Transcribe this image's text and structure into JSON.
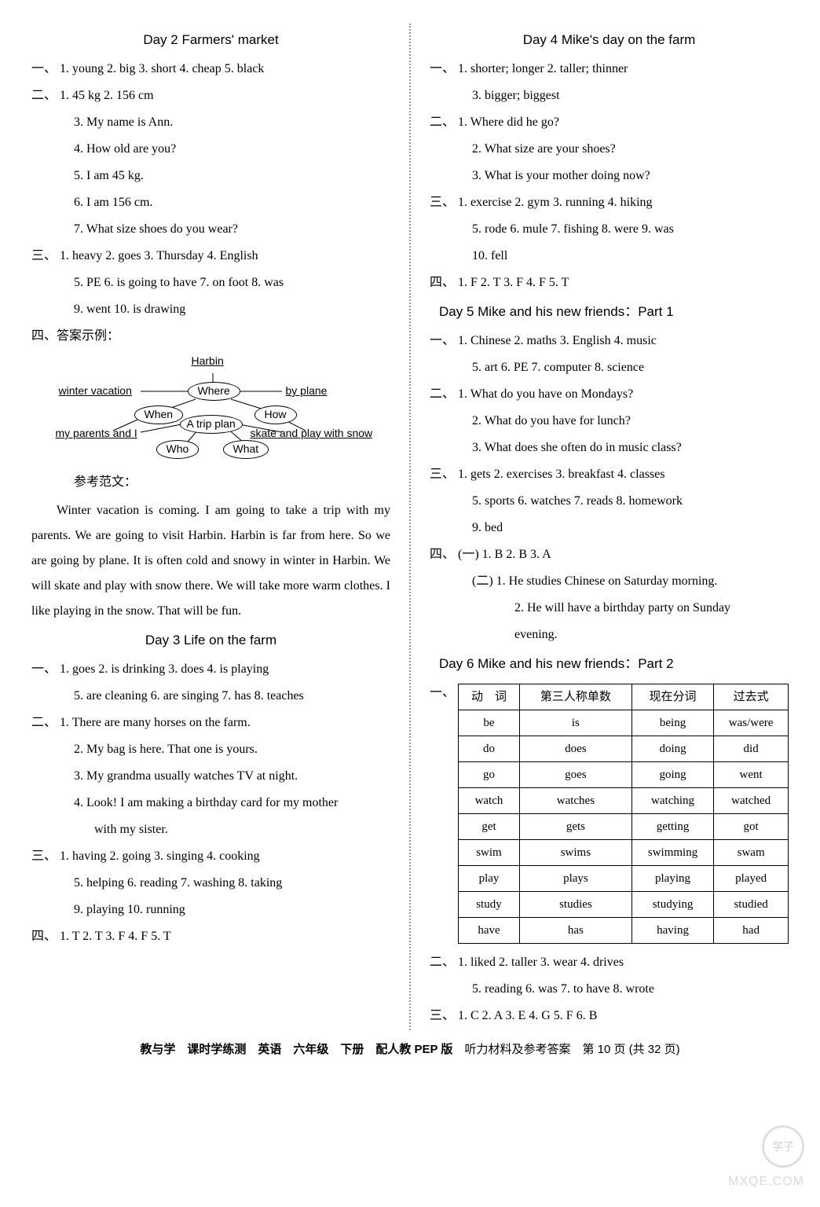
{
  "left": {
    "day2": {
      "title": "Day 2   Farmers' market",
      "s1": {
        "label": "一、",
        "line1": "1. young   2. big   3. short   4. cheap   5. black"
      },
      "s2": {
        "label": "二、",
        "line1": "1. 45 kg   2. 156 cm",
        "line2": "3. My name is Ann.",
        "line3": "4. How old are you?",
        "line4": "5. I am 45 kg.",
        "line5": "6. I am 156 cm.",
        "line6": "7. What size shoes do you wear?"
      },
      "s3": {
        "label": "三、",
        "line1": "1. heavy   2. goes   3. Thursday   4. English",
        "line2": "5. PE   6. is going to have   7. on foot   8. was",
        "line3": "9. went   10. is drawing"
      },
      "s4": {
        "label": "四、答案示例：",
        "diagram": {
          "harbin": "Harbin",
          "winter_vacation": "winter vacation",
          "by_plane": "by plane",
          "my_parents": "my parents and I",
          "skate": "skate and play with snow",
          "where": "Where",
          "when": "When",
          "how": "How",
          "who": "Who",
          "what": "What",
          "center": "A trip plan"
        },
        "fanwen_label": "参考范文：",
        "essay": "Winter vacation is coming. I am going to take a trip with my parents. We are going to visit Harbin. Harbin is far from here. So we are going by plane. It is often cold and snowy in winter in Harbin. We will skate and play with snow there. We will take more warm clothes. I like playing in the snow. That will be fun."
      }
    },
    "day3": {
      "title": "Day 3   Life on the farm",
      "s1": {
        "label": "一、",
        "line1": "1. goes   2. is drinking   3. does   4. is playing",
        "line2": "5. are cleaning   6. are singing   7. has   8. teaches"
      },
      "s2": {
        "label": "二、",
        "line1": "1. There are many horses on the farm.",
        "line2": "2. My bag is here. That one is yours.",
        "line3": "3. My grandma usually watches TV at night.",
        "line4": "4. Look! I am making a birthday card for my mother",
        "line5": "with my sister."
      },
      "s3": {
        "label": "三、",
        "line1": "1. having   2. going   3. singing   4. cooking",
        "line2": "5. helping   6. reading   7. washing   8. taking",
        "line3": "9. playing   10. running"
      },
      "s4": {
        "label": "四、",
        "line1": "1. T   2. T   3. F   4. F   5. T"
      }
    }
  },
  "right": {
    "day4": {
      "title": "Day 4   Mike's day on the farm",
      "s1": {
        "label": "一、",
        "line1": "1. shorter; longer   2. taller; thinner",
        "line2": "3. bigger; biggest"
      },
      "s2": {
        "label": "二、",
        "line1": "1. Where did he go?",
        "line2": "2. What size are your shoes?",
        "line3": "3. What is your mother doing now?"
      },
      "s3": {
        "label": "三、",
        "line1": "1. exercise   2. gym   3. running   4. hiking",
        "line2": "5. rode   6. mule   7. fishing   8. were   9. was",
        "line3": "10. fell"
      },
      "s4": {
        "label": "四、",
        "line1": "1. F   2. T   3. F   4. F   5. T"
      }
    },
    "day5": {
      "title": "Day 5   Mike and his new friends：Part 1",
      "s1": {
        "label": "一、",
        "line1": "1. Chinese   2. maths   3. English   4. music",
        "line2": "5. art   6. PE   7. computer   8. science"
      },
      "s2": {
        "label": "二、",
        "line1": "1. What do you have on Mondays?",
        "line2": "2. What do you have for lunch?",
        "line3": "3. What does she often do in music class?"
      },
      "s3": {
        "label": "三、",
        "line1": "1. gets   2. exercises   3. breakfast   4. classes",
        "line2": "5. sports   6. watches   7. reads   8. homework",
        "line3": "9. bed"
      },
      "s4": {
        "label": "四、",
        "part1_label": "(一) ",
        "part1": "1. B   2. B   3. A",
        "part2_label": "(二) ",
        "part2_1": "1. He studies Chinese on Saturday morning.",
        "part2_2": "2. He will have a birthday party on Sunday",
        "part2_3": "evening."
      }
    },
    "day6": {
      "title": "Day 6   Mike and his new friends：Part 2",
      "s1_label": "一、",
      "table": {
        "headers": [
          "动　词",
          "第三人称单数",
          "现在分词",
          "过去式"
        ],
        "rows": [
          [
            "be",
            "is",
            "being",
            "was/were"
          ],
          [
            "do",
            "does",
            "doing",
            "did"
          ],
          [
            "go",
            "goes",
            "going",
            "went"
          ],
          [
            "watch",
            "watches",
            "watching",
            "watched"
          ],
          [
            "get",
            "gets",
            "getting",
            "got"
          ],
          [
            "swim",
            "swims",
            "swimming",
            "swam"
          ],
          [
            "play",
            "plays",
            "playing",
            "played"
          ],
          [
            "study",
            "studies",
            "studying",
            "studied"
          ],
          [
            "have",
            "has",
            "having",
            "had"
          ]
        ]
      },
      "s2": {
        "label": "二、",
        "line1": "1. liked   2. taller   3. wear   4. drives",
        "line2": "5. reading   6. was   7. to have   8. wrote"
      },
      "s3": {
        "label": "三、",
        "line1": "1. C   2. A   3. E   4. G   5. F   6. B"
      }
    }
  },
  "footer": {
    "bold": "教与学　课时学练测　英语　六年级　下册　配人教 PEP 版",
    "rest": "　听力材料及参考答案　第 10 页 (共 32 页)"
  },
  "watermark": {
    "circle": "学子",
    "text": "MXQE.COM"
  }
}
